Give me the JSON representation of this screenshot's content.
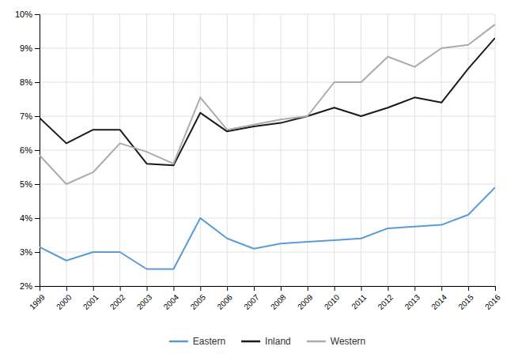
{
  "chart_data": {
    "type": "line",
    "x": [
      1999,
      2000,
      2001,
      2002,
      2003,
      2004,
      2005,
      2006,
      2007,
      2008,
      2009,
      2010,
      2011,
      2012,
      2013,
      2014,
      2015,
      2016
    ],
    "series": [
      {
        "name": "Eastern",
        "color": "#5B9BD5",
        "values": [
          3.15,
          2.75,
          3.0,
          3.0,
          2.5,
          2.5,
          4.0,
          3.4,
          3.1,
          3.25,
          3.3,
          3.35,
          3.4,
          3.7,
          3.75,
          3.8,
          4.1,
          4.9
        ]
      },
      {
        "name": "Inland",
        "color": "#1a1a1a",
        "values": [
          6.95,
          6.2,
          6.6,
          6.6,
          5.6,
          5.55,
          7.1,
          6.55,
          6.7,
          6.8,
          7.0,
          7.25,
          7.0,
          7.25,
          7.55,
          7.4,
          8.4,
          9.3
        ]
      },
      {
        "name": "Western",
        "color": "#ABABAB",
        "values": [
          5.85,
          5.0,
          5.35,
          6.2,
          5.95,
          5.6,
          7.55,
          6.6,
          6.75,
          6.9,
          7.0,
          8.0,
          8.0,
          8.75,
          8.45,
          9.0,
          9.1,
          9.7
        ]
      }
    ],
    "xlim": [
      1999,
      2016
    ],
    "xticks": [
      1999,
      2000,
      2001,
      2002,
      2003,
      2004,
      2005,
      2006,
      2007,
      2008,
      2009,
      2010,
      2011,
      2012,
      2013,
      2014,
      2015,
      2016
    ],
    "ylim": [
      2,
      10
    ],
    "yticks": [
      {
        "value": 2,
        "label": "2%"
      },
      {
        "value": 3,
        "label": "3%"
      },
      {
        "value": 4,
        "label": "4%"
      },
      {
        "value": 5,
        "label": "5%"
      },
      {
        "value": 6,
        "label": "6%"
      },
      {
        "value": 7,
        "label": "7%"
      },
      {
        "value": 8,
        "label": "8%"
      },
      {
        "value": 9,
        "label": "9%"
      },
      {
        "value": 10,
        "label": "10%"
      }
    ],
    "grid": true,
    "legend": "bottom"
  }
}
